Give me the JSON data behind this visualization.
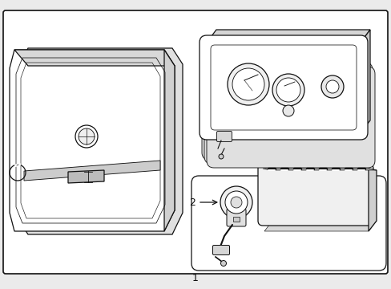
{
  "background_color": "#ebebeb",
  "border_color": "#111111",
  "line_color": "#111111",
  "label_1": "1",
  "label_2": "2",
  "fig_width": 4.89,
  "fig_height": 3.6,
  "dpi": 100
}
